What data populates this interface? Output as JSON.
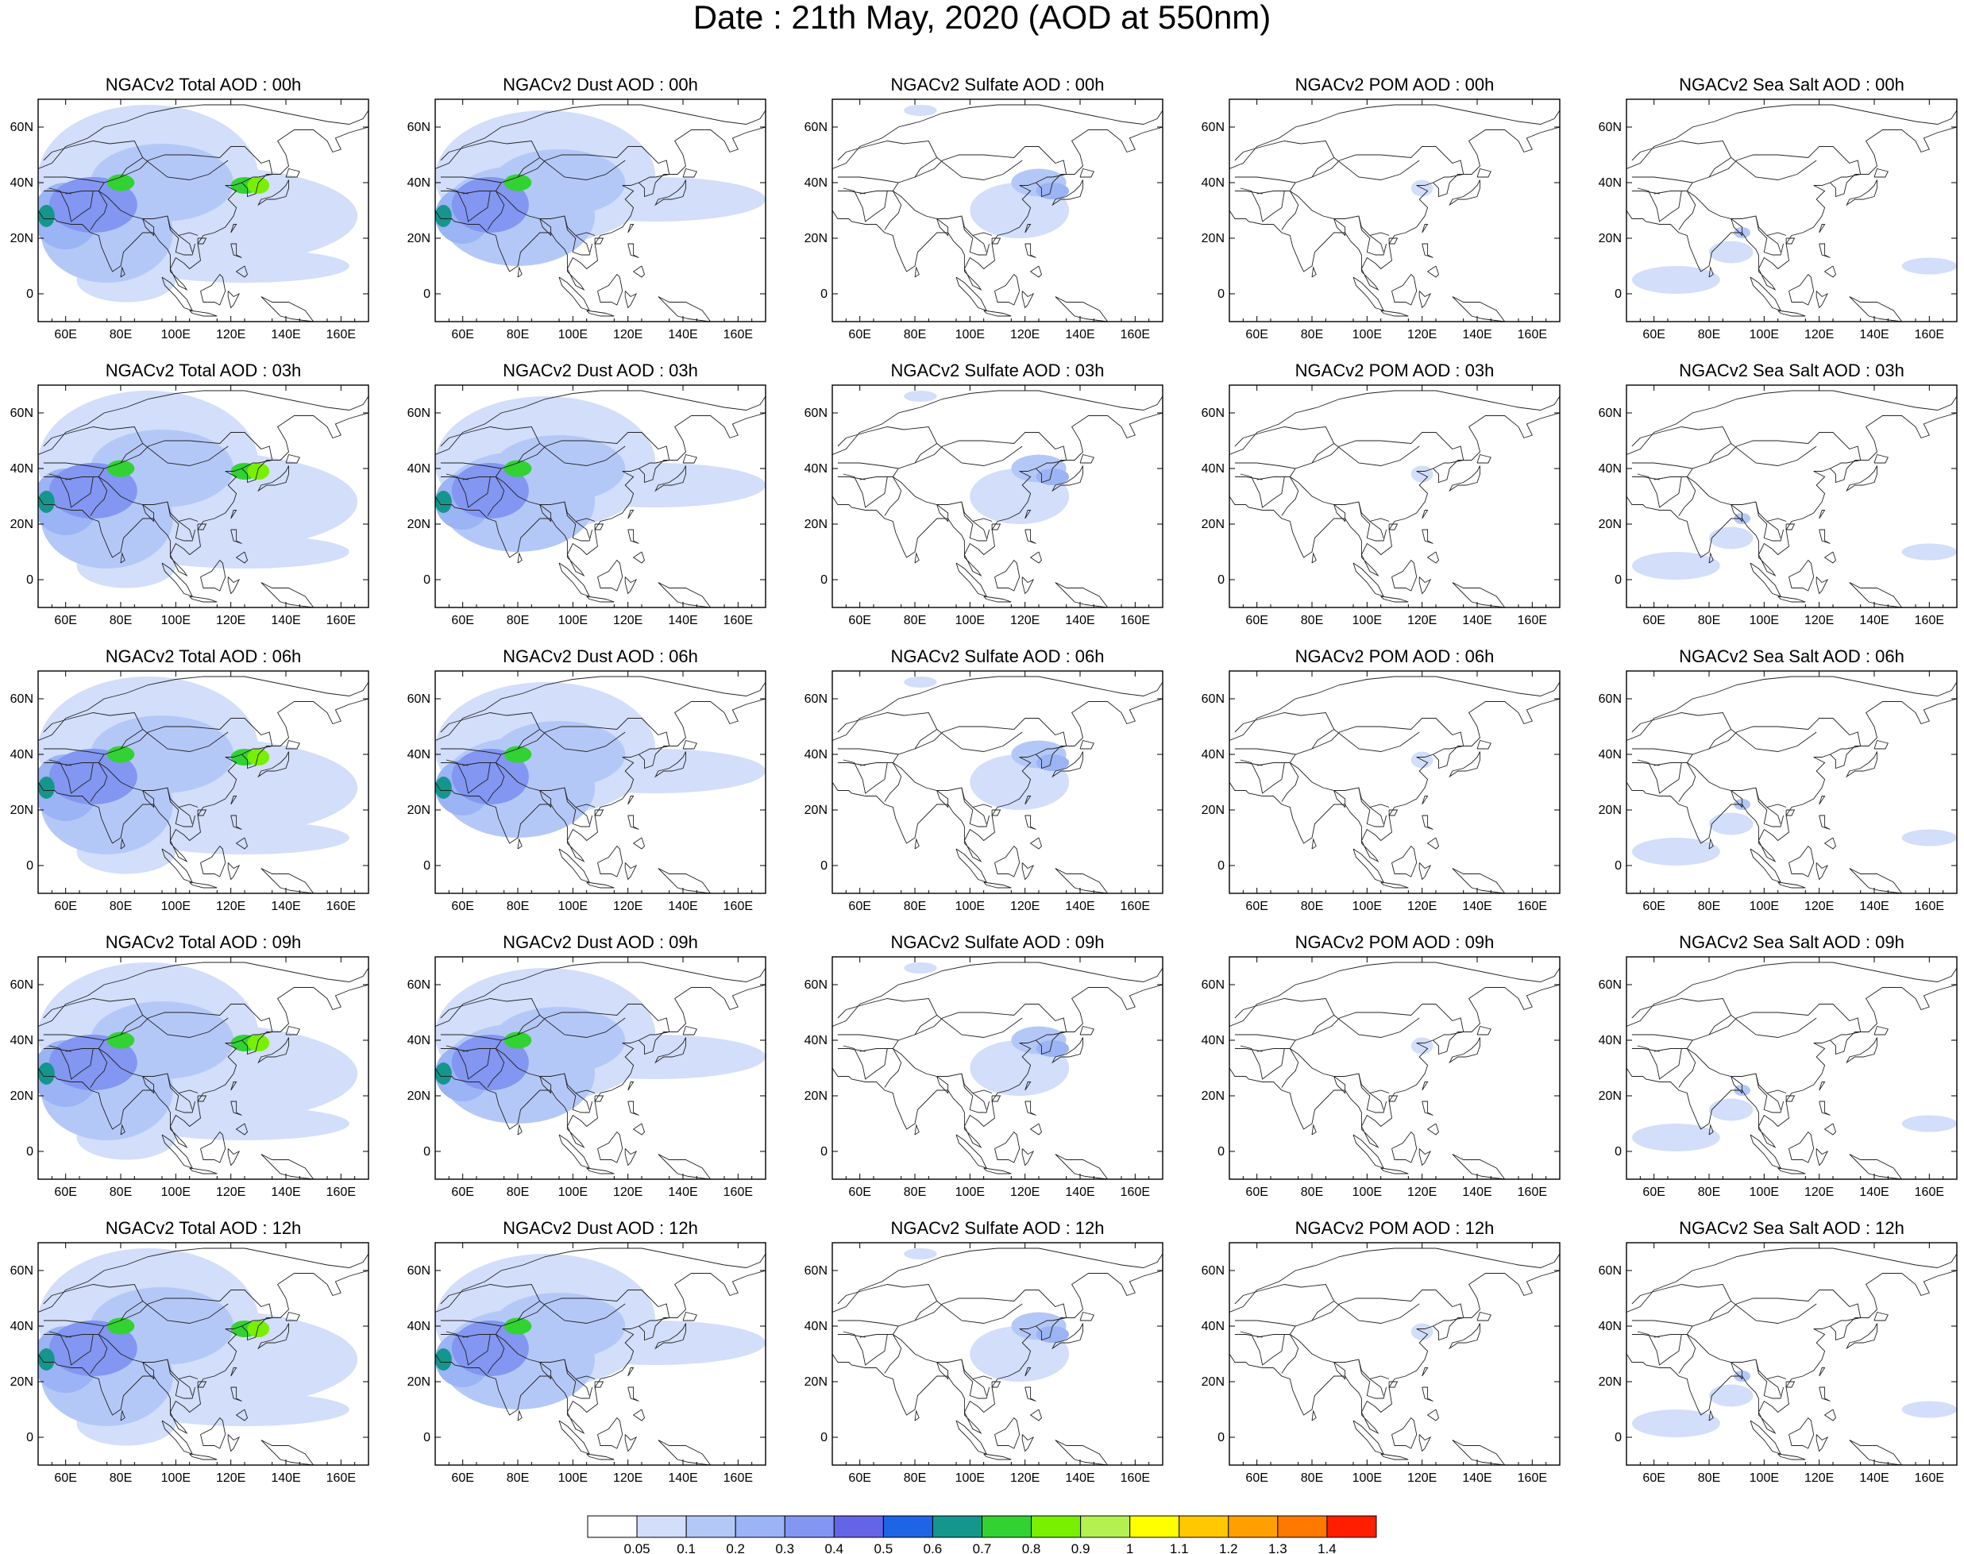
{
  "title": "Date : 21th May, 2020 (AOD at 550nm)",
  "panels": [
    [
      "NGACv2 Total AOD : 00h",
      "NGACv2 Dust AOD : 00h",
      "NGACv2 Sulfate AOD : 00h",
      "NGACv2 POM AOD : 00h",
      "NGACv2 Sea Salt AOD : 00h"
    ],
    [
      "NGACv2 Total AOD : 03h",
      "NGACv2 Dust AOD : 03h",
      "NGACv2 Sulfate AOD : 03h",
      "NGACv2 POM AOD : 03h",
      "NGACv2 Sea Salt AOD : 03h"
    ],
    [
      "NGACv2 Total AOD : 06h",
      "NGACv2 Dust AOD : 06h",
      "NGACv2 Sulfate AOD : 06h",
      "NGACv2 POM AOD : 06h",
      "NGACv2 Sea Salt AOD : 06h"
    ],
    [
      "NGACv2 Total AOD : 09h",
      "NGACv2 Dust AOD : 09h",
      "NGACv2 Sulfate AOD : 09h",
      "NGACv2 POM AOD : 09h",
      "NGACv2 Sea Salt  AOD : 09h"
    ],
    [
      "NGACv2 Total AOD  : 12h",
      "NGACv2 Dust AOD : 12h",
      "NGACv2 Sulfate AOD : 12h",
      "NGACv2 POM  AOD : 12h",
      "NGACv2 Sea Salt  AOD : 12h"
    ]
  ],
  "map": {
    "lon_range": [
      50,
      170
    ],
    "lat_range": [
      -10,
      70
    ],
    "lon_ticks": [
      60,
      80,
      100,
      120,
      140,
      160
    ],
    "lon_tick_labels": [
      "60E",
      "80E",
      "100E",
      "120E",
      "140E",
      "160E"
    ],
    "lat_ticks": [
      0,
      20,
      40,
      60
    ],
    "lat_tick_labels": [
      "0",
      "20N",
      "40N",
      "60N"
    ]
  },
  "colorbar": {
    "colors": [
      "#ffffff",
      "#d2defa",
      "#b4c8f8",
      "#9bb4f5",
      "#8296f2",
      "#6464e6",
      "#1e64e6",
      "#14968c",
      "#32d232",
      "#78f000",
      "#b4f050",
      "#ffff00",
      "#ffc800",
      "#ffa000",
      "#ff7800",
      "#ff1e00"
    ],
    "labels": [
      "0.05",
      "0.1",
      "0.2",
      "0.3",
      "0.4",
      "0.5",
      "0.6",
      "0.7",
      "0.8",
      "0.9",
      "1",
      "1.1",
      "1.2",
      "1.3",
      "1.4"
    ]
  }
}
